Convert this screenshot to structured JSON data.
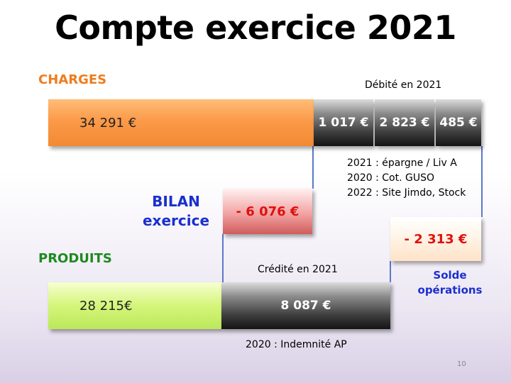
{
  "title": "Compte exercice 2021",
  "charges": {
    "label": "CHARGES",
    "debit_caption": "Débité en 2021",
    "main_value": "34 291 €",
    "segments": [
      "1 017 €",
      "2 823 €",
      "485 €"
    ],
    "notes": [
      "2021 : épargne / Liv A",
      "2020 : Cot. GUSO",
      "2022 : Site Jimdo, Stock"
    ]
  },
  "bilan": {
    "line1": "BILAN",
    "line2": "exercice",
    "value": "- 6 076 €"
  },
  "produits": {
    "label": "PRODUITS",
    "credit_caption": "Crédité en 2021",
    "main_value": "28 215€",
    "credit_value": "8 087 €",
    "note": "2020 : Indemnité AP"
  },
  "solde": {
    "value": "- 2 313 €",
    "line1": "Solde",
    "line2": "opérations"
  },
  "page_number": "10",
  "colors": {
    "charges_label": "#f07c1e",
    "produits_label": "#1e8a1e",
    "bilan_text": "#1a2fcf",
    "negative_value": "#e01010"
  }
}
